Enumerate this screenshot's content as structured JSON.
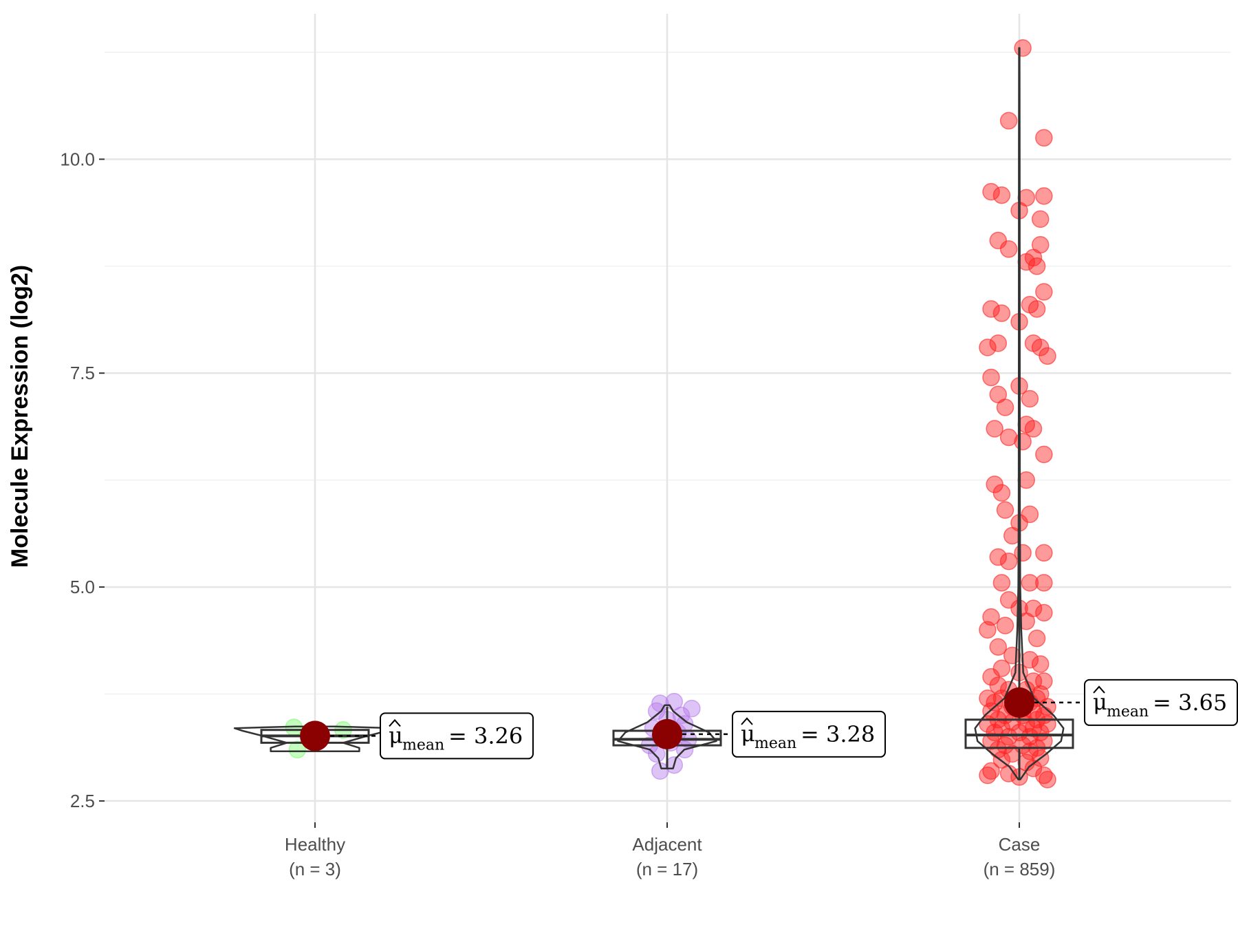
{
  "chart_data": {
    "type": "violin-box-scatter",
    "title": "",
    "xlabel": "",
    "ylabel": "Molecule Expression (log2)",
    "ylim": [
      2.25,
      11.7
    ],
    "yticks": [
      2.5,
      5.0,
      7.5,
      10.0
    ],
    "ytick_labels": [
      "2.5",
      "5.0",
      "7.5",
      "10.0"
    ],
    "grid": true,
    "categories": [
      "Healthy",
      "Adjacent",
      "Case"
    ],
    "n_labels": [
      "(n = 3)",
      "(n = 17)",
      "(n = 859)"
    ],
    "groups": [
      {
        "name": "Healthy",
        "color": "#7CFC72",
        "mean": 3.26,
        "mean_label": "= 3.26",
        "box": {
          "q1": 3.18,
          "median": 3.26,
          "q3": 3.33,
          "whisker_low": 3.1,
          "whisker_high": 3.36
        },
        "violin": [
          [
            3.08,
            0.55
          ],
          [
            3.12,
            0.55
          ],
          [
            3.18,
            0.35
          ],
          [
            3.26,
            0.65
          ],
          [
            3.32,
            0.9
          ],
          [
            3.35,
            1.0
          ],
          [
            3.37,
            0.25
          ]
        ],
        "points": [
          [
            -0.05,
            3.1
          ],
          [
            0.08,
            3.33
          ],
          [
            -0.06,
            3.36
          ]
        ]
      },
      {
        "name": "Adjacent",
        "color": "#B57BEA",
        "mean": 3.28,
        "mean_label": "= 3.28",
        "box": {
          "q1": 3.15,
          "median": 3.22,
          "q3": 3.32,
          "whisker_low": 2.88,
          "whisker_high": 3.6
        },
        "violin": [
          [
            2.88,
            0.12
          ],
          [
            3.0,
            0.18
          ],
          [
            3.1,
            0.35
          ],
          [
            3.2,
            1.0
          ],
          [
            3.3,
            0.85
          ],
          [
            3.42,
            0.4
          ],
          [
            3.55,
            0.12
          ],
          [
            3.62,
            0.05
          ]
        ],
        "points": [
          [
            -0.02,
            2.85
          ],
          [
            0.02,
            2.92
          ],
          [
            -0.03,
            3.05
          ],
          [
            0.05,
            3.1
          ],
          [
            -0.05,
            3.15
          ],
          [
            0.01,
            3.18
          ],
          [
            0.06,
            3.22
          ],
          [
            -0.02,
            3.25
          ],
          [
            0.03,
            3.3
          ],
          [
            -0.04,
            3.35
          ],
          [
            0.05,
            3.4
          ],
          [
            0.0,
            3.45
          ],
          [
            0.04,
            3.5
          ],
          [
            -0.03,
            3.55
          ],
          [
            0.07,
            3.58
          ],
          [
            -0.02,
            3.64
          ],
          [
            0.02,
            3.66
          ]
        ]
      },
      {
        "name": "Case",
        "color": "#FF2020",
        "mean": 3.65,
        "mean_label": "= 3.65",
        "box": {
          "q1": 3.12,
          "median": 3.27,
          "q3": 3.45,
          "whisker_low": 2.75,
          "whisker_high": 11.3
        },
        "violin": [
          [
            2.75,
            0.02
          ],
          [
            2.9,
            0.2
          ],
          [
            3.05,
            0.55
          ],
          [
            3.2,
            0.85
          ],
          [
            3.35,
            0.9
          ],
          [
            3.5,
            0.7
          ],
          [
            3.7,
            0.3
          ],
          [
            4.0,
            0.08
          ],
          [
            4.5,
            0.04
          ],
          [
            5.0,
            0.02
          ],
          [
            6.0,
            0.012
          ],
          [
            8.0,
            0.01
          ],
          [
            10.0,
            0.008
          ],
          [
            11.3,
            0.005
          ]
        ],
        "points": [
          [
            0.01,
            11.3
          ],
          [
            -0.03,
            10.45
          ],
          [
            0.07,
            10.25
          ],
          [
            -0.08,
            9.62
          ],
          [
            -0.05,
            9.58
          ],
          [
            0.02,
            9.55
          ],
          [
            0.07,
            9.57
          ],
          [
            0.0,
            9.4
          ],
          [
            0.06,
            9.3
          ],
          [
            -0.06,
            9.05
          ],
          [
            -0.03,
            8.95
          ],
          [
            0.06,
            9.0
          ],
          [
            0.04,
            8.85
          ],
          [
            0.02,
            8.8
          ],
          [
            0.05,
            8.75
          ],
          [
            0.07,
            8.45
          ],
          [
            -0.08,
            8.25
          ],
          [
            -0.05,
            8.2
          ],
          [
            0.03,
            8.3
          ],
          [
            0.05,
            8.25
          ],
          [
            0.0,
            8.1
          ],
          [
            -0.06,
            7.85
          ],
          [
            -0.09,
            7.8
          ],
          [
            0.04,
            7.85
          ],
          [
            0.06,
            7.8
          ],
          [
            0.08,
            7.7
          ],
          [
            -0.08,
            7.45
          ],
          [
            -0.06,
            7.25
          ],
          [
            0.0,
            7.35
          ],
          [
            0.03,
            7.2
          ],
          [
            -0.04,
            7.1
          ],
          [
            -0.07,
            6.85
          ],
          [
            -0.03,
            6.75
          ],
          [
            0.02,
            6.9
          ],
          [
            0.04,
            6.85
          ],
          [
            0.01,
            6.7
          ],
          [
            0.07,
            6.55
          ],
          [
            -0.07,
            6.2
          ],
          [
            -0.05,
            6.1
          ],
          [
            0.02,
            6.25
          ],
          [
            -0.04,
            5.9
          ],
          [
            0.0,
            5.75
          ],
          [
            -0.02,
            5.6
          ],
          [
            0.03,
            5.85
          ],
          [
            -0.06,
            5.35
          ],
          [
            -0.03,
            5.3
          ],
          [
            0.01,
            5.4
          ],
          [
            0.07,
            5.4
          ],
          [
            -0.05,
            5.05
          ],
          [
            0.03,
            5.05
          ],
          [
            0.07,
            5.05
          ],
          [
            -0.03,
            4.85
          ],
          [
            0.0,
            4.75
          ],
          [
            -0.08,
            4.65
          ],
          [
            0.04,
            4.75
          ],
          [
            0.07,
            4.7
          ],
          [
            -0.09,
            4.5
          ],
          [
            -0.04,
            4.55
          ],
          [
            0.02,
            4.6
          ],
          [
            0.05,
            4.4
          ],
          [
            -0.06,
            4.3
          ],
          [
            -0.02,
            4.2
          ],
          [
            0.03,
            4.15
          ],
          [
            0.06,
            4.1
          ],
          [
            -0.05,
            4.05
          ],
          [
            0.0,
            4.0
          ],
          [
            -0.08,
            3.95
          ],
          [
            0.04,
            3.9
          ],
          [
            0.07,
            3.9
          ],
          [
            -0.06,
            3.85
          ],
          [
            -0.03,
            3.8
          ],
          [
            0.02,
            3.8
          ],
          [
            0.06,
            3.75
          ],
          [
            -0.09,
            3.7
          ],
          [
            -0.05,
            3.7
          ],
          [
            0.0,
            3.72
          ],
          [
            0.05,
            3.7
          ],
          [
            -0.07,
            3.65
          ],
          [
            0.03,
            3.65
          ],
          [
            -0.02,
            3.6
          ],
          [
            0.08,
            3.6
          ],
          [
            -0.08,
            3.55
          ],
          [
            0.04,
            3.55
          ],
          [
            -0.04,
            3.5
          ],
          [
            0.01,
            3.5
          ],
          [
            0.07,
            3.5
          ],
          [
            -0.06,
            3.45
          ],
          [
            0.05,
            3.45
          ],
          [
            -0.02,
            3.42
          ],
          [
            -0.09,
            3.4
          ],
          [
            0.02,
            3.4
          ],
          [
            0.08,
            3.4
          ],
          [
            -0.05,
            3.35
          ],
          [
            0.04,
            3.35
          ],
          [
            -0.07,
            3.3
          ],
          [
            0.0,
            3.3
          ],
          [
            0.06,
            3.3
          ],
          [
            -0.03,
            3.25
          ],
          [
            0.03,
            3.25
          ],
          [
            -0.08,
            3.2
          ],
          [
            0.07,
            3.2
          ],
          [
            -0.04,
            3.15
          ],
          [
            0.01,
            3.15
          ],
          [
            0.05,
            3.12
          ],
          [
            -0.06,
            3.1
          ],
          [
            0.03,
            3.08
          ],
          [
            -0.02,
            3.05
          ],
          [
            0.06,
            3.0
          ],
          [
            -0.05,
            2.98
          ],
          [
            0.02,
            2.95
          ],
          [
            -0.08,
            2.85
          ],
          [
            0.04,
            2.88
          ],
          [
            0.07,
            2.8
          ],
          [
            -0.09,
            2.8
          ],
          [
            0.0,
            2.78
          ],
          [
            0.08,
            2.75
          ],
          [
            -0.03,
            2.82
          ]
        ]
      }
    ]
  }
}
